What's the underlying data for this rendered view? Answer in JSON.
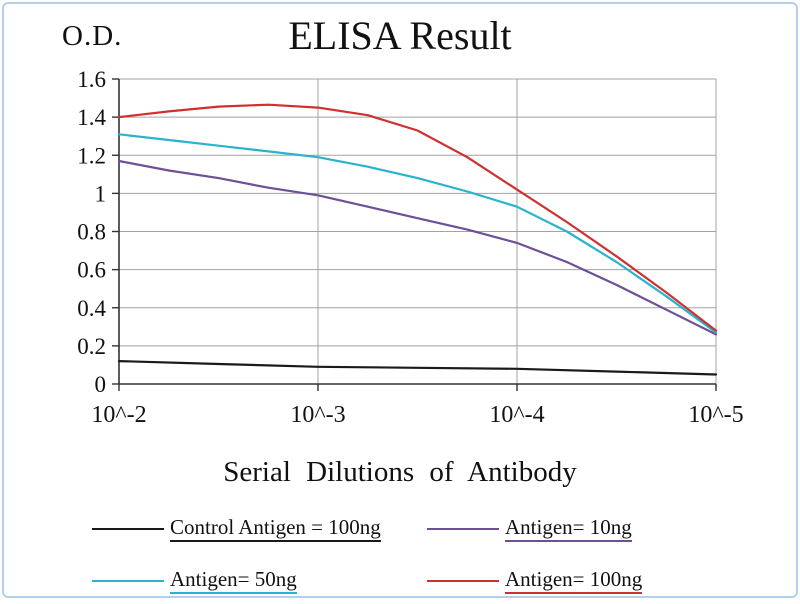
{
  "frame": {
    "background_color": "#ffffff",
    "border_color": "#b3cfe9"
  },
  "chart_data": {
    "type": "line",
    "title": "ELISA Result",
    "ylabel": "O.D.",
    "xlabel": "Serial Dilutions of Antibody",
    "x_scale": "log10-dilution",
    "xlim": [
      -2,
      -5
    ],
    "ylim": [
      0,
      1.6
    ],
    "grid": true,
    "grid_color": "#a3a3a3",
    "axis_color": "#333333",
    "x_ticks": [
      -2,
      -3,
      -4,
      -5
    ],
    "x_tick_labels": [
      "10^-2",
      "10^-3",
      "10^-4",
      "10^-5"
    ],
    "y_ticks": [
      0,
      0.2,
      0.4,
      0.6,
      0.8,
      1,
      1.2,
      1.4,
      1.6
    ],
    "y_tick_labels": [
      "0",
      "0.2",
      "0.4",
      "0.6",
      "0.8",
      "1",
      "1.2",
      "1.4",
      "1.6"
    ],
    "legend_position": "bottom",
    "series": [
      {
        "id": "control-antigen-100ng",
        "name": "Control Antigen = 100ng",
        "color": "#1a1a1a",
        "values_at_ticks": [
          0.12,
          0.09,
          0.08,
          0.05
        ],
        "points": [
          [
            -2,
            0.12
          ],
          [
            -2.5,
            0.105
          ],
          [
            -3,
            0.09
          ],
          [
            -3.5,
            0.085
          ],
          [
            -4,
            0.08
          ],
          [
            -4.5,
            0.065
          ],
          [
            -5,
            0.05
          ]
        ]
      },
      {
        "id": "antigen-10ng",
        "name": "Antigen= 10ng",
        "color": "#6d5096",
        "values_at_ticks": [
          1.17,
          0.99,
          0.74,
          0.26
        ],
        "points": [
          [
            -2,
            1.17
          ],
          [
            -2.25,
            1.12
          ],
          [
            -2.5,
            1.08
          ],
          [
            -2.75,
            1.03
          ],
          [
            -3,
            0.99
          ],
          [
            -3.25,
            0.93
          ],
          [
            -3.5,
            0.87
          ],
          [
            -3.75,
            0.81
          ],
          [
            -4,
            0.74
          ],
          [
            -4.25,
            0.64
          ],
          [
            -4.5,
            0.52
          ],
          [
            -4.75,
            0.39
          ],
          [
            -5,
            0.26
          ]
        ]
      },
      {
        "id": "antigen-50ng",
        "name": "Antigen= 50ng",
        "color": "#29b3cc",
        "values_at_ticks": [
          1.31,
          1.19,
          0.93,
          0.27
        ],
        "points": [
          [
            -2,
            1.31
          ],
          [
            -2.25,
            1.28
          ],
          [
            -2.5,
            1.25
          ],
          [
            -2.75,
            1.22
          ],
          [
            -3,
            1.19
          ],
          [
            -3.25,
            1.14
          ],
          [
            -3.5,
            1.08
          ],
          [
            -3.75,
            1.01
          ],
          [
            -4,
            0.93
          ],
          [
            -4.25,
            0.8
          ],
          [
            -4.5,
            0.64
          ],
          [
            -4.75,
            0.46
          ],
          [
            -5,
            0.27
          ]
        ]
      },
      {
        "id": "antigen-100ng",
        "name": "Antigen= 100ng",
        "color": "#cf3030",
        "values_at_ticks": [
          1.4,
          1.45,
          1.02,
          0.28
        ],
        "points": [
          [
            -2,
            1.4
          ],
          [
            -2.25,
            1.43
          ],
          [
            -2.5,
            1.455
          ],
          [
            -2.75,
            1.465
          ],
          [
            -3,
            1.45
          ],
          [
            -3.25,
            1.41
          ],
          [
            -3.5,
            1.33
          ],
          [
            -3.75,
            1.19
          ],
          [
            -4,
            1.02
          ],
          [
            -4.25,
            0.85
          ],
          [
            -4.5,
            0.67
          ],
          [
            -4.75,
            0.48
          ],
          [
            -5,
            0.28
          ]
        ]
      }
    ]
  }
}
